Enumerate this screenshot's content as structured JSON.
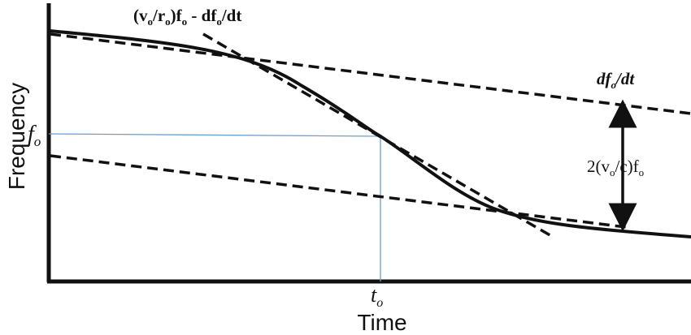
{
  "labels": {
    "y_axis": "Frequency",
    "x_axis": "Time",
    "f0_main": "f",
    "f0_sub": "o",
    "t0_main": "t",
    "t0_sub": "o",
    "tangent_label": {
      "open": "(v",
      "s1": "o",
      "mid": "/r",
      "s2": "o",
      "close": ")f",
      "s3": "o",
      "minus": " - df",
      "s4": "o",
      "end": "/dt"
    },
    "asymptote_label": {
      "a": "df",
      "sub": "o",
      "b": "/dt"
    },
    "separation_label": {
      "a": "2(v",
      "sub1": "o",
      "b": "/c)f",
      "sub2": "o"
    }
  },
  "colors": {
    "curve": "#111111",
    "guide_lines": "#6a9fd0"
  },
  "icons": [
    "double-arrow-icon"
  ]
}
